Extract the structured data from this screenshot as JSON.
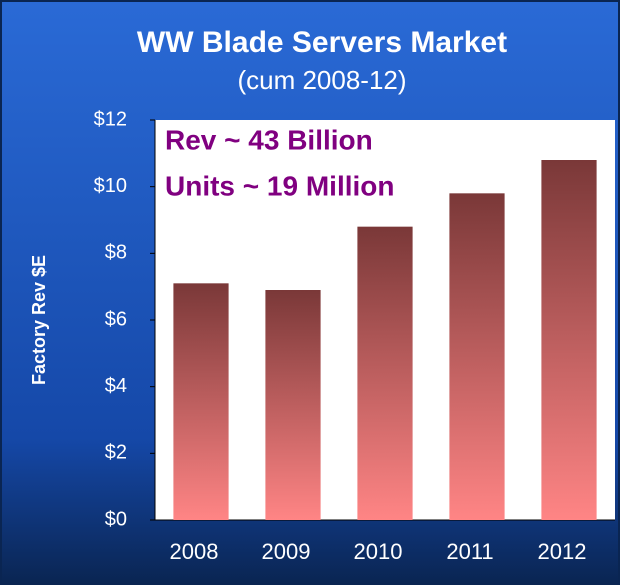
{
  "chart_data": {
    "type": "bar",
    "title": "WW Blade Servers Market",
    "subtitle": "(cum 2008-12)",
    "y_label": "Factory Rev $E",
    "annotations": [
      "Rev ~ 43 Billion",
      "Units ~ 19 Million"
    ],
    "categories": [
      "2008",
      "2009",
      "2010",
      "2011",
      "2012"
    ],
    "values": [
      7.1,
      6.9,
      8.8,
      9.8,
      10.8
    ],
    "gradient": [
      "#7a3838",
      "#ff8585"
    ],
    "annotation_color": "#800080",
    "ylim": [
      0,
      12
    ],
    "yticks": [
      {
        "value": 0,
        "label": "$0"
      },
      {
        "value": 2,
        "label": "$2"
      },
      {
        "value": 4,
        "label": "$4"
      },
      {
        "value": 6,
        "label": "$6"
      },
      {
        "value": 8,
        "label": "$8"
      },
      {
        "value": 10,
        "label": "$10"
      },
      {
        "value": 12,
        "label": "$12"
      }
    ]
  }
}
